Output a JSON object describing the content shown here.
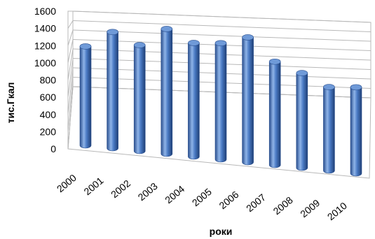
{
  "chart_data": {
    "type": "bar",
    "style": "3d-cylinder",
    "categories": [
      "2000",
      "2001",
      "2002",
      "2003",
      "2004",
      "2005",
      "2006",
      "2007",
      "2008",
      "2009",
      "2010"
    ],
    "values": [
      1150,
      1350,
      1230,
      1450,
      1320,
      1350,
      1450,
      1200,
      1100,
      970,
      1000
    ],
    "xlabel": "роки",
    "ylabel": "тис.Гкал",
    "ylim": [
      0,
      1600
    ],
    "yticks": [
      "0",
      "200",
      "400",
      "600",
      "800",
      "1000",
      "1200",
      "1400",
      "1600"
    ],
    "grid": true,
    "legend": "none",
    "colors": {
      "bar": "#4a7ac4",
      "bar_dark": "#2a4f8e",
      "bar_light": "#8fb4e8",
      "bar_top": "#6f9ad8",
      "grid": "#b8b8b8",
      "wall": "#d6d6d6"
    }
  }
}
